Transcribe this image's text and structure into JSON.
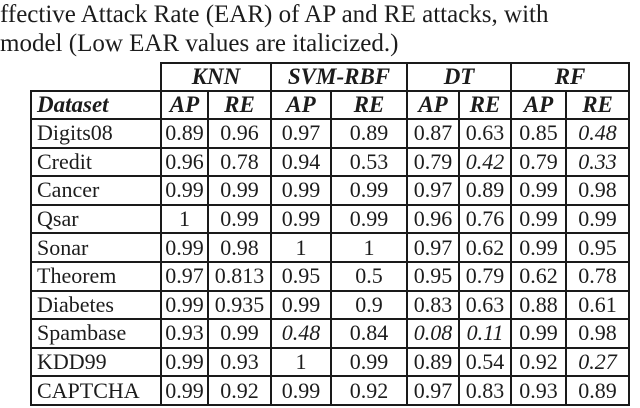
{
  "caption": {
    "line1": "ffective Attack Rate (EAR) of AP and RE attacks, with",
    "line2": "model (Low EAR values are italicized.)"
  },
  "colors": {
    "text": "#1c1c1c",
    "border": "#1a1a1a",
    "background": "#ffffff"
  },
  "table": {
    "group_headers": [
      {
        "label": "KNN"
      },
      {
        "label": "SVM-RBF"
      },
      {
        "label": "DT"
      },
      {
        "label": "RF"
      }
    ],
    "sub_headers": [
      "Dataset",
      "AP",
      "RE",
      "AP",
      "RE",
      "AP",
      "RE",
      "AP",
      "RE"
    ],
    "rows": [
      {
        "dataset": "Digits08",
        "cells": [
          {
            "v": "0.89"
          },
          {
            "v": "0.96"
          },
          {
            "v": "0.97"
          },
          {
            "v": "0.89"
          },
          {
            "v": "0.87"
          },
          {
            "v": "0.63"
          },
          {
            "v": "0.85"
          },
          {
            "v": "0.48",
            "low": true
          }
        ]
      },
      {
        "dataset": "Credit",
        "cells": [
          {
            "v": "0.96"
          },
          {
            "v": "0.78"
          },
          {
            "v": "0.94"
          },
          {
            "v": "0.53"
          },
          {
            "v": "0.79"
          },
          {
            "v": "0.42",
            "low": true
          },
          {
            "v": "0.79"
          },
          {
            "v": "0.33",
            "low": true
          }
        ]
      },
      {
        "dataset": "Cancer",
        "cells": [
          {
            "v": "0.99"
          },
          {
            "v": "0.99"
          },
          {
            "v": "0.99"
          },
          {
            "v": "0.99"
          },
          {
            "v": "0.97"
          },
          {
            "v": "0.89"
          },
          {
            "v": "0.99"
          },
          {
            "v": "0.98"
          }
        ]
      },
      {
        "dataset": "Qsar",
        "cells": [
          {
            "v": "1"
          },
          {
            "v": "0.99"
          },
          {
            "v": "0.99"
          },
          {
            "v": "0.99"
          },
          {
            "v": "0.96"
          },
          {
            "v": "0.76"
          },
          {
            "v": "0.99"
          },
          {
            "v": "0.99"
          }
        ]
      },
      {
        "dataset": "Sonar",
        "cells": [
          {
            "v": "0.99"
          },
          {
            "v": "0.98"
          },
          {
            "v": "1"
          },
          {
            "v": "1"
          },
          {
            "v": "0.97"
          },
          {
            "v": "0.62"
          },
          {
            "v": "0.99"
          },
          {
            "v": "0.95"
          }
        ]
      },
      {
        "dataset": "Theorem",
        "cells": [
          {
            "v": "0.97"
          },
          {
            "v": "0.813"
          },
          {
            "v": "0.95"
          },
          {
            "v": "0.5"
          },
          {
            "v": "0.95"
          },
          {
            "v": "0.79"
          },
          {
            "v": "0.62"
          },
          {
            "v": "0.78"
          }
        ]
      },
      {
        "dataset": "Diabetes",
        "cells": [
          {
            "v": "0.99"
          },
          {
            "v": "0.935"
          },
          {
            "v": "0.99"
          },
          {
            "v": "0.9"
          },
          {
            "v": "0.83"
          },
          {
            "v": "0.63"
          },
          {
            "v": "0.88"
          },
          {
            "v": "0.61"
          }
        ]
      },
      {
        "dataset": "Spambase",
        "cells": [
          {
            "v": "0.93"
          },
          {
            "v": "0.99"
          },
          {
            "v": "0.48",
            "low": true
          },
          {
            "v": "0.84"
          },
          {
            "v": "0.08",
            "low": true
          },
          {
            "v": "0.11",
            "low": true
          },
          {
            "v": "0.99"
          },
          {
            "v": "0.98"
          }
        ]
      },
      {
        "dataset": "KDD99",
        "cells": [
          {
            "v": "0.99"
          },
          {
            "v": "0.93"
          },
          {
            "v": "1"
          },
          {
            "v": "0.99"
          },
          {
            "v": "0.89"
          },
          {
            "v": "0.54"
          },
          {
            "v": "0.92"
          },
          {
            "v": "0.27",
            "low": true
          }
        ]
      },
      {
        "dataset": "CAPTCHA",
        "cells": [
          {
            "v": "0.99"
          },
          {
            "v": "0.92"
          },
          {
            "v": "0.99"
          },
          {
            "v": "0.92"
          },
          {
            "v": "0.97"
          },
          {
            "v": "0.83"
          },
          {
            "v": "0.93"
          },
          {
            "v": "0.89"
          }
        ]
      }
    ]
  }
}
